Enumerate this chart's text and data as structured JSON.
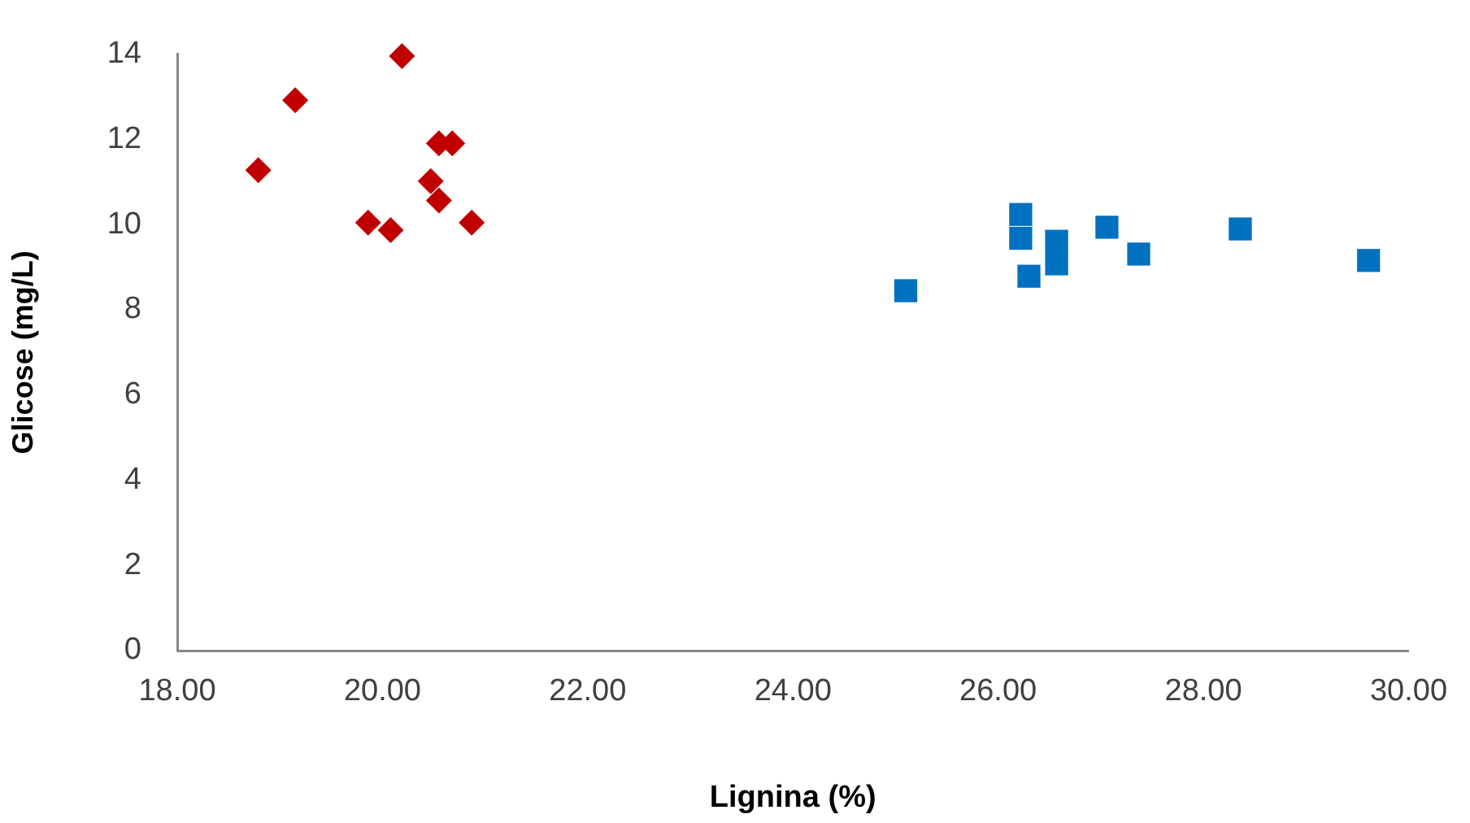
{
  "chart_data": {
    "type": "scatter",
    "xlabel": "Lignina (%)",
    "ylabel": "Glicose (mg/L)",
    "xlim": [
      18,
      30
    ],
    "xticks": [
      {
        "value": 18,
        "label": "18.00"
      },
      {
        "value": 20,
        "label": "20.00"
      },
      {
        "value": 22,
        "label": "22.00"
      },
      {
        "value": 24,
        "label": "24.00"
      },
      {
        "value": 26,
        "label": "26.00"
      },
      {
        "value": 28,
        "label": "28.00"
      },
      {
        "value": 30,
        "label": "30.00"
      }
    ],
    "ylim": [
      0,
      14
    ],
    "yticks": [
      0,
      2,
      4,
      6,
      8,
      10,
      12,
      14
    ],
    "grid": false,
    "legend": false,
    "series": [
      {
        "color": "#c00000",
        "marker": "diamond",
        "x": [
          18.79,
          19.15,
          20.19,
          20.55,
          20.68,
          20.47,
          20.55,
          19.86,
          20.08,
          20.87
        ],
        "values": [
          11.28,
          12.92,
          13.96,
          11.91,
          11.91,
          11.02,
          10.57,
          10.05,
          9.87,
          10.05
        ]
      },
      {
        "color": "#0070c0",
        "marker": "square",
        "x": [
          25.1,
          26.22,
          26.22,
          26.3,
          26.57,
          26.57,
          27.06,
          27.37,
          28.36,
          29.61
        ],
        "values": [
          8.45,
          10.24,
          9.68,
          8.79,
          9.61,
          9.08,
          9.94,
          9.31,
          9.9,
          9.16
        ]
      }
    ]
  }
}
